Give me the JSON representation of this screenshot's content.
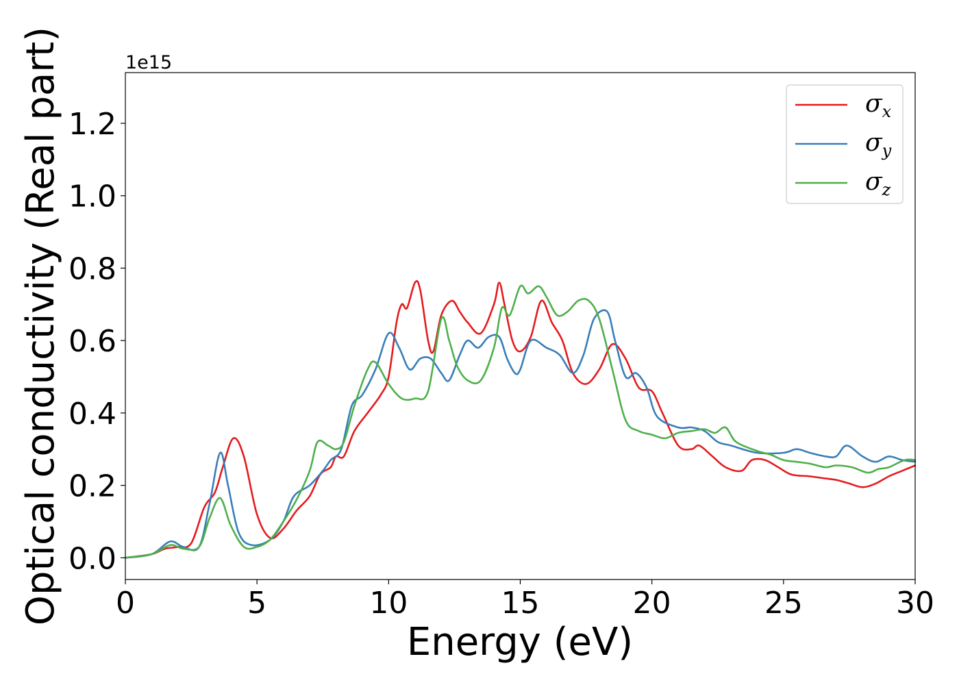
{
  "chart_data": {
    "type": "line",
    "xlabel": "Energy (eV)",
    "ylabel": "Optical conductivity (Real part)",
    "y_offset_label": "1e15",
    "xlim": [
      0,
      30
    ],
    "ylim": [
      -0.06,
      1.34
    ],
    "x_ticks": [
      0,
      5,
      10,
      15,
      20,
      25,
      30
    ],
    "x_tick_labels": [
      "0",
      "5",
      "10",
      "15",
      "20",
      "25",
      "30"
    ],
    "y_ticks": [
      0.0,
      0.2,
      0.4,
      0.6,
      0.8,
      1.0,
      1.2
    ],
    "y_tick_labels": [
      "0.0",
      "0.2",
      "0.4",
      "0.6",
      "0.8",
      "1.0",
      "1.2"
    ],
    "grid": false,
    "legend_position": "top-right",
    "series": [
      {
        "name": "σx",
        "legend_base": "σ",
        "legend_sub": "x",
        "color": "#e41a1c",
        "points": [
          [
            0,
            0
          ],
          [
            1,
            0.01
          ],
          [
            1.5,
            0.025
          ],
          [
            2,
            0.03
          ],
          [
            2.5,
            0.04
          ],
          [
            3,
            0.14
          ],
          [
            3.4,
            0.18
          ],
          [
            3.7,
            0.25
          ],
          [
            4.1,
            0.33
          ],
          [
            4.5,
            0.28
          ],
          [
            5,
            0.12
          ],
          [
            5.5,
            0.055
          ],
          [
            6,
            0.08
          ],
          [
            6.5,
            0.13
          ],
          [
            7,
            0.17
          ],
          [
            7.4,
            0.23
          ],
          [
            7.8,
            0.25
          ],
          [
            8,
            0.28
          ],
          [
            8.3,
            0.28
          ],
          [
            8.7,
            0.35
          ],
          [
            9.2,
            0.4
          ],
          [
            9.7,
            0.45
          ],
          [
            10,
            0.5
          ],
          [
            10.3,
            0.65
          ],
          [
            10.5,
            0.7
          ],
          [
            10.7,
            0.69
          ],
          [
            11,
            0.76
          ],
          [
            11.2,
            0.74
          ],
          [
            11.5,
            0.6
          ],
          [
            11.7,
            0.57
          ],
          [
            12,
            0.67
          ],
          [
            12.4,
            0.71
          ],
          [
            12.7,
            0.68
          ],
          [
            13,
            0.65
          ],
          [
            13.5,
            0.62
          ],
          [
            14,
            0.7
          ],
          [
            14.2,
            0.76
          ],
          [
            14.4,
            0.7
          ],
          [
            14.7,
            0.6
          ],
          [
            15,
            0.57
          ],
          [
            15.4,
            0.61
          ],
          [
            15.8,
            0.71
          ],
          [
            16.2,
            0.65
          ],
          [
            16.6,
            0.6
          ],
          [
            17,
            0.51
          ],
          [
            17.5,
            0.48
          ],
          [
            18,
            0.52
          ],
          [
            18.5,
            0.59
          ],
          [
            19,
            0.55
          ],
          [
            19.5,
            0.47
          ],
          [
            20,
            0.46
          ],
          [
            20.4,
            0.4
          ],
          [
            21,
            0.31
          ],
          [
            21.5,
            0.3
          ],
          [
            21.8,
            0.31
          ],
          [
            22.3,
            0.28
          ],
          [
            22.8,
            0.25
          ],
          [
            23.4,
            0.24
          ],
          [
            23.8,
            0.27
          ],
          [
            24.3,
            0.27
          ],
          [
            24.8,
            0.25
          ],
          [
            25.3,
            0.23
          ],
          [
            26,
            0.225
          ],
          [
            26.5,
            0.22
          ],
          [
            27,
            0.215
          ],
          [
            27.5,
            0.205
          ],
          [
            28,
            0.195
          ],
          [
            28.5,
            0.205
          ],
          [
            29,
            0.225
          ],
          [
            29.5,
            0.24
          ],
          [
            30,
            0.255
          ]
        ]
      },
      {
        "name": "σy",
        "legend_base": "σ",
        "legend_sub": "y",
        "color": "#377eb8",
        "points": [
          [
            0,
            0
          ],
          [
            1,
            0.01
          ],
          [
            1.7,
            0.045
          ],
          [
            2.2,
            0.03
          ],
          [
            2.8,
            0.03
          ],
          [
            3.2,
            0.15
          ],
          [
            3.6,
            0.29
          ],
          [
            3.9,
            0.2
          ],
          [
            4.3,
            0.07
          ],
          [
            4.8,
            0.035
          ],
          [
            5.5,
            0.05
          ],
          [
            6,
            0.1
          ],
          [
            6.4,
            0.17
          ],
          [
            7,
            0.2
          ],
          [
            7.5,
            0.24
          ],
          [
            7.8,
            0.27
          ],
          [
            8.2,
            0.3
          ],
          [
            8.6,
            0.42
          ],
          [
            9,
            0.45
          ],
          [
            9.5,
            0.52
          ],
          [
            10,
            0.62
          ],
          [
            10.4,
            0.58
          ],
          [
            10.8,
            0.52
          ],
          [
            11.2,
            0.55
          ],
          [
            11.6,
            0.55
          ],
          [
            12,
            0.51
          ],
          [
            12.3,
            0.49
          ],
          [
            12.7,
            0.56
          ],
          [
            13,
            0.6
          ],
          [
            13.4,
            0.58
          ],
          [
            13.8,
            0.61
          ],
          [
            14.2,
            0.61
          ],
          [
            14.5,
            0.55
          ],
          [
            14.8,
            0.51
          ],
          [
            15,
            0.52
          ],
          [
            15.4,
            0.6
          ],
          [
            16,
            0.58
          ],
          [
            16.5,
            0.56
          ],
          [
            17,
            0.51
          ],
          [
            17.4,
            0.56
          ],
          [
            17.8,
            0.66
          ],
          [
            18.3,
            0.68
          ],
          [
            18.6,
            0.6
          ],
          [
            19,
            0.5
          ],
          [
            19.4,
            0.51
          ],
          [
            19.8,
            0.47
          ],
          [
            20.2,
            0.39
          ],
          [
            21,
            0.36
          ],
          [
            21.5,
            0.36
          ],
          [
            22,
            0.35
          ],
          [
            22.5,
            0.32
          ],
          [
            23,
            0.31
          ],
          [
            24,
            0.29
          ],
          [
            25,
            0.29
          ],
          [
            25.5,
            0.3
          ],
          [
            26,
            0.29
          ],
          [
            26.6,
            0.28
          ],
          [
            27,
            0.28
          ],
          [
            27.4,
            0.31
          ],
          [
            28,
            0.28
          ],
          [
            28.5,
            0.265
          ],
          [
            29,
            0.28
          ],
          [
            29.5,
            0.27
          ],
          [
            30,
            0.265
          ]
        ]
      },
      {
        "name": "σz",
        "legend_base": "σ",
        "legend_sub": "z",
        "color": "#4daf4a",
        "points": [
          [
            0,
            0
          ],
          [
            1,
            0.01
          ],
          [
            1.7,
            0.035
          ],
          [
            2.2,
            0.025
          ],
          [
            2.8,
            0.03
          ],
          [
            3.2,
            0.11
          ],
          [
            3.6,
            0.165
          ],
          [
            4,
            0.09
          ],
          [
            4.5,
            0.03
          ],
          [
            5,
            0.03
          ],
          [
            5.5,
            0.05
          ],
          [
            6,
            0.1
          ],
          [
            6.5,
            0.16
          ],
          [
            7,
            0.24
          ],
          [
            7.3,
            0.32
          ],
          [
            7.7,
            0.31
          ],
          [
            8,
            0.3
          ],
          [
            8.3,
            0.32
          ],
          [
            8.7,
            0.42
          ],
          [
            9.2,
            0.52
          ],
          [
            9.5,
            0.54
          ],
          [
            10,
            0.48
          ],
          [
            10.5,
            0.44
          ],
          [
            11,
            0.44
          ],
          [
            11.5,
            0.46
          ],
          [
            12,
            0.66
          ],
          [
            12.3,
            0.6
          ],
          [
            12.6,
            0.53
          ],
          [
            13,
            0.49
          ],
          [
            13.5,
            0.49
          ],
          [
            14,
            0.58
          ],
          [
            14.3,
            0.69
          ],
          [
            14.6,
            0.67
          ],
          [
            15,
            0.75
          ],
          [
            15.3,
            0.73
          ],
          [
            15.7,
            0.75
          ],
          [
            16,
            0.72
          ],
          [
            16.4,
            0.67
          ],
          [
            16.8,
            0.68
          ],
          [
            17.2,
            0.71
          ],
          [
            17.6,
            0.71
          ],
          [
            18,
            0.66
          ],
          [
            18.5,
            0.52
          ],
          [
            19,
            0.38
          ],
          [
            19.5,
            0.35
          ],
          [
            20,
            0.34
          ],
          [
            20.5,
            0.33
          ],
          [
            21,
            0.345
          ],
          [
            21.5,
            0.35
          ],
          [
            22,
            0.355
          ],
          [
            22.4,
            0.345
          ],
          [
            22.8,
            0.36
          ],
          [
            23.2,
            0.32
          ],
          [
            24,
            0.295
          ],
          [
            24.5,
            0.285
          ],
          [
            25,
            0.27
          ],
          [
            25.5,
            0.265
          ],
          [
            26,
            0.26
          ],
          [
            26.6,
            0.25
          ],
          [
            27,
            0.255
          ],
          [
            27.6,
            0.25
          ],
          [
            28.2,
            0.235
          ],
          [
            28.6,
            0.245
          ],
          [
            29,
            0.25
          ],
          [
            29.6,
            0.27
          ],
          [
            30,
            0.27
          ]
        ]
      }
    ]
  }
}
